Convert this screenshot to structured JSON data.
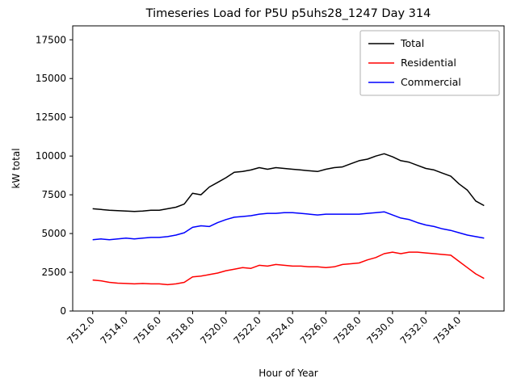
{
  "chart_data": {
    "type": "line",
    "title": "Timeseries Load for P5U p5uhs28_1247  Day 314",
    "xlabel": "Hour of Year",
    "ylabel": "kW total",
    "xlim": [
      7510.8,
      7536.7
    ],
    "ylim": [
      0,
      18400
    ],
    "xticks": [
      7512,
      7514,
      7516,
      7518,
      7520,
      7522,
      7524,
      7526,
      7528,
      7530,
      7532,
      7534
    ],
    "xtick_labels": [
      "7512.0",
      "7514.0",
      "7516.0",
      "7518.0",
      "7520.0",
      "7522.0",
      "7524.0",
      "7526.0",
      "7528.0",
      "7530.0",
      "7532.0",
      "7534.0"
    ],
    "yticks": [
      0,
      2500,
      5000,
      7500,
      10000,
      12500,
      15000,
      17500
    ],
    "ytick_labels": [
      "0",
      "2500",
      "5000",
      "7500",
      "10000",
      "12500",
      "15000",
      "17500"
    ],
    "grid": false,
    "legend_position": "upper right",
    "x": [
      7512.0,
      7512.5,
      7513.0,
      7513.5,
      7514.0,
      7514.5,
      7515.0,
      7515.5,
      7516.0,
      7516.5,
      7517.0,
      7517.5,
      7518.0,
      7518.5,
      7519.0,
      7519.5,
      7520.0,
      7520.5,
      7521.0,
      7521.5,
      7522.0,
      7522.5,
      7523.0,
      7523.5,
      7524.0,
      7524.5,
      7525.0,
      7525.5,
      7526.0,
      7526.5,
      7527.0,
      7527.5,
      7528.0,
      7528.5,
      7529.0,
      7529.5,
      7530.0,
      7530.5,
      7531.0,
      7531.5,
      7532.0,
      7532.5,
      7533.0,
      7533.5,
      7534.0,
      7534.5,
      7535.0,
      7535.5
    ],
    "series": [
      {
        "name": "Total",
        "color": "#000000",
        "values": [
          6600,
          6550,
          6500,
          6480,
          6450,
          6420,
          6450,
          6500,
          6500,
          6600,
          6700,
          6900,
          7600,
          7500,
          8000,
          8300,
          8600,
          8950,
          9000,
          9100,
          9250,
          9150,
          9250,
          9200,
          9150,
          9100,
          9050,
          9000,
          9150,
          9250,
          9300,
          9500,
          9700,
          9800,
          10000,
          10150,
          9950,
          9700,
          9600,
          9400,
          9200,
          9100,
          8900,
          8700,
          8200,
          7800,
          7100,
          6800
        ]
      },
      {
        "name": "Residential",
        "color": "#ff0000",
        "values": [
          2000,
          1950,
          1850,
          1800,
          1780,
          1750,
          1780,
          1750,
          1750,
          1700,
          1750,
          1850,
          2200,
          2250,
          2350,
          2450,
          2600,
          2700,
          2800,
          2750,
          2950,
          2900,
          3000,
          2950,
          2900,
          2900,
          2850,
          2850,
          2800,
          2850,
          3000,
          3050,
          3100,
          3300,
          3450,
          3700,
          3800,
          3700,
          3800,
          3800,
          3750,
          3700,
          3650,
          3600,
          3200,
          2800,
          2400,
          2100
        ]
      },
      {
        "name": "Commercial",
        "color": "#0000ff",
        "values": [
          4600,
          4650,
          4600,
          4650,
          4700,
          4650,
          4700,
          4750,
          4750,
          4800,
          4900,
          5050,
          5400,
          5500,
          5450,
          5700,
          5900,
          6050,
          6100,
          6150,
          6250,
          6300,
          6300,
          6350,
          6350,
          6300,
          6250,
          6200,
          6250,
          6250,
          6250,
          6250,
          6250,
          6300,
          6350,
          6400,
          6200,
          6000,
          5900,
          5700,
          5550,
          5450,
          5300,
          5200,
          5050,
          4900,
          4800,
          4700
        ]
      }
    ]
  }
}
